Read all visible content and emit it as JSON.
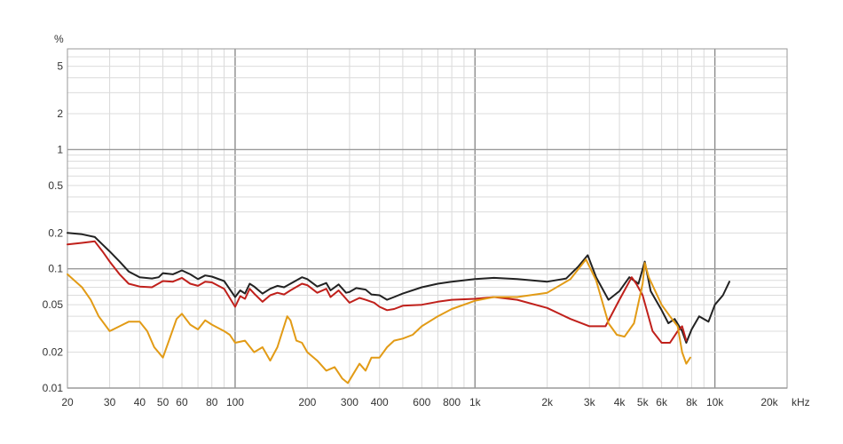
{
  "chart_data": {
    "type": "line",
    "xscale": "log",
    "yscale": "log",
    "xlim": [
      20,
      20000
    ],
    "ylim": [
      0.01,
      7
    ],
    "y_unit_label": "%",
    "x_unit_label": "kHz",
    "x_ticks": [
      {
        "value": 20,
        "label": "20"
      },
      {
        "value": 30,
        "label": "30"
      },
      {
        "value": 40,
        "label": "40"
      },
      {
        "value": 50,
        "label": "50"
      },
      {
        "value": 60,
        "label": "60"
      },
      {
        "value": 80,
        "label": "80"
      },
      {
        "value": 100,
        "label": "100"
      },
      {
        "value": 200,
        "label": "200"
      },
      {
        "value": 300,
        "label": "300"
      },
      {
        "value": 400,
        "label": "400"
      },
      {
        "value": 600,
        "label": "600"
      },
      {
        "value": 800,
        "label": "800"
      },
      {
        "value": 1000,
        "label": "1k"
      },
      {
        "value": 2000,
        "label": "2k"
      },
      {
        "value": 3000,
        "label": "3k"
      },
      {
        "value": 4000,
        "label": "4k"
      },
      {
        "value": 5000,
        "label": "5k"
      },
      {
        "value": 6000,
        "label": "6k"
      },
      {
        "value": 8000,
        "label": "8k"
      },
      {
        "value": 10000,
        "label": "10k"
      },
      {
        "value": 20000,
        "label": "20k"
      }
    ],
    "y_ticks": [
      {
        "value": 5,
        "label": "5"
      },
      {
        "value": 2,
        "label": "2"
      },
      {
        "value": 1,
        "label": "1"
      },
      {
        "value": 0.5,
        "label": "0.5"
      },
      {
        "value": 0.2,
        "label": "0.2"
      },
      {
        "value": 0.1,
        "label": "0.1"
      },
      {
        "value": 0.05,
        "label": "0.05"
      },
      {
        "value": 0.02,
        "label": "0.02"
      },
      {
        "value": 0.01,
        "label": "0.01"
      }
    ],
    "grid": true,
    "series": [
      {
        "color": "#222222",
        "points": [
          [
            20,
            0.2
          ],
          [
            23,
            0.195
          ],
          [
            26,
            0.185
          ],
          [
            28,
            0.16
          ],
          [
            30,
            0.14
          ],
          [
            33,
            0.115
          ],
          [
            36,
            0.095
          ],
          [
            40,
            0.085
          ],
          [
            45,
            0.083
          ],
          [
            48,
            0.085
          ],
          [
            50,
            0.092
          ],
          [
            55,
            0.09
          ],
          [
            60,
            0.097
          ],
          [
            65,
            0.09
          ],
          [
            70,
            0.082
          ],
          [
            75,
            0.088
          ],
          [
            80,
            0.086
          ],
          [
            90,
            0.079
          ],
          [
            100,
            0.058
          ],
          [
            105,
            0.066
          ],
          [
            110,
            0.062
          ],
          [
            115,
            0.075
          ],
          [
            120,
            0.071
          ],
          [
            130,
            0.062
          ],
          [
            140,
            0.068
          ],
          [
            150,
            0.072
          ],
          [
            160,
            0.07
          ],
          [
            170,
            0.075
          ],
          [
            190,
            0.085
          ],
          [
            200,
            0.082
          ],
          [
            220,
            0.071
          ],
          [
            240,
            0.076
          ],
          [
            250,
            0.066
          ],
          [
            270,
            0.074
          ],
          [
            290,
            0.063
          ],
          [
            300,
            0.064
          ],
          [
            320,
            0.069
          ],
          [
            350,
            0.067
          ],
          [
            370,
            0.061
          ],
          [
            400,
            0.06
          ],
          [
            430,
            0.055
          ],
          [
            460,
            0.058
          ],
          [
            500,
            0.062
          ],
          [
            600,
            0.07
          ],
          [
            700,
            0.075
          ],
          [
            800,
            0.078
          ],
          [
            1000,
            0.082
          ],
          [
            1200,
            0.084
          ],
          [
            1500,
            0.082
          ],
          [
            2000,
            0.078
          ],
          [
            2400,
            0.083
          ],
          [
            2700,
            0.105
          ],
          [
            2950,
            0.13
          ],
          [
            3200,
            0.085
          ],
          [
            3600,
            0.055
          ],
          [
            4000,
            0.065
          ],
          [
            4400,
            0.085
          ],
          [
            4800,
            0.075
          ],
          [
            5100,
            0.115
          ],
          [
            5400,
            0.065
          ],
          [
            6000,
            0.045
          ],
          [
            6400,
            0.035
          ],
          [
            6800,
            0.038
          ],
          [
            7300,
            0.03
          ],
          [
            7600,
            0.024
          ],
          [
            8000,
            0.031
          ],
          [
            8600,
            0.04
          ],
          [
            9400,
            0.036
          ],
          [
            10000,
            0.05
          ],
          [
            10800,
            0.06
          ],
          [
            11500,
            0.078
          ]
        ]
      },
      {
        "color": "#c0201b",
        "points": [
          [
            20,
            0.16
          ],
          [
            23,
            0.165
          ],
          [
            26,
            0.17
          ],
          [
            28,
            0.14
          ],
          [
            30,
            0.115
          ],
          [
            33,
            0.09
          ],
          [
            36,
            0.075
          ],
          [
            40,
            0.071
          ],
          [
            45,
            0.07
          ],
          [
            50,
            0.079
          ],
          [
            55,
            0.078
          ],
          [
            60,
            0.084
          ],
          [
            65,
            0.075
          ],
          [
            70,
            0.072
          ],
          [
            75,
            0.078
          ],
          [
            80,
            0.077
          ],
          [
            90,
            0.068
          ],
          [
            100,
            0.048
          ],
          [
            105,
            0.059
          ],
          [
            110,
            0.056
          ],
          [
            115,
            0.068
          ],
          [
            120,
            0.062
          ],
          [
            130,
            0.053
          ],
          [
            140,
            0.06
          ],
          [
            150,
            0.063
          ],
          [
            160,
            0.061
          ],
          [
            170,
            0.066
          ],
          [
            190,
            0.075
          ],
          [
            200,
            0.073
          ],
          [
            220,
            0.063
          ],
          [
            240,
            0.068
          ],
          [
            250,
            0.058
          ],
          [
            270,
            0.066
          ],
          [
            290,
            0.056
          ],
          [
            300,
            0.052
          ],
          [
            330,
            0.057
          ],
          [
            350,
            0.055
          ],
          [
            380,
            0.052
          ],
          [
            400,
            0.048
          ],
          [
            430,
            0.045
          ],
          [
            460,
            0.046
          ],
          [
            500,
            0.049
          ],
          [
            600,
            0.05
          ],
          [
            700,
            0.053
          ],
          [
            800,
            0.055
          ],
          [
            1000,
            0.056
          ],
          [
            1200,
            0.058
          ],
          [
            1500,
            0.055
          ],
          [
            2000,
            0.047
          ],
          [
            2500,
            0.038
          ],
          [
            3000,
            0.033
          ],
          [
            3500,
            0.033
          ],
          [
            4000,
            0.055
          ],
          [
            4500,
            0.085
          ],
          [
            4700,
            0.075
          ],
          [
            5000,
            0.06
          ],
          [
            5500,
            0.03
          ],
          [
            6000,
            0.024
          ],
          [
            6500,
            0.024
          ],
          [
            7000,
            0.03
          ],
          [
            7300,
            0.033
          ],
          [
            7600,
            0.025
          ]
        ]
      },
      {
        "color": "#e29b16",
        "points": [
          [
            20,
            0.09
          ],
          [
            23,
            0.07
          ],
          [
            25,
            0.055
          ],
          [
            27,
            0.04
          ],
          [
            30,
            0.03
          ],
          [
            33,
            0.033
          ],
          [
            36,
            0.036
          ],
          [
            40,
            0.036
          ],
          [
            43,
            0.03
          ],
          [
            46,
            0.022
          ],
          [
            50,
            0.018
          ],
          [
            53,
            0.025
          ],
          [
            57,
            0.038
          ],
          [
            60,
            0.042
          ],
          [
            65,
            0.034
          ],
          [
            70,
            0.031
          ],
          [
            75,
            0.037
          ],
          [
            80,
            0.034
          ],
          [
            90,
            0.03
          ],
          [
            95,
            0.028
          ],
          [
            100,
            0.024
          ],
          [
            110,
            0.025
          ],
          [
            120,
            0.02
          ],
          [
            130,
            0.022
          ],
          [
            140,
            0.017
          ],
          [
            150,
            0.022
          ],
          [
            160,
            0.033
          ],
          [
            165,
            0.04
          ],
          [
            170,
            0.037
          ],
          [
            180,
            0.025
          ],
          [
            190,
            0.024
          ],
          [
            200,
            0.02
          ],
          [
            220,
            0.017
          ],
          [
            240,
            0.014
          ],
          [
            260,
            0.015
          ],
          [
            280,
            0.012
          ],
          [
            295,
            0.011
          ],
          [
            310,
            0.013
          ],
          [
            330,
            0.016
          ],
          [
            350,
            0.014
          ],
          [
            370,
            0.018
          ],
          [
            400,
            0.018
          ],
          [
            430,
            0.022
          ],
          [
            460,
            0.025
          ],
          [
            500,
            0.026
          ],
          [
            550,
            0.028
          ],
          [
            600,
            0.033
          ],
          [
            700,
            0.04
          ],
          [
            800,
            0.046
          ],
          [
            1000,
            0.054
          ],
          [
            1200,
            0.058
          ],
          [
            1500,
            0.058
          ],
          [
            2000,
            0.063
          ],
          [
            2500,
            0.082
          ],
          [
            2900,
            0.12
          ],
          [
            3200,
            0.08
          ],
          [
            3600,
            0.035
          ],
          [
            3900,
            0.028
          ],
          [
            4200,
            0.027
          ],
          [
            4600,
            0.035
          ],
          [
            5000,
            0.075
          ],
          [
            5100,
            0.112
          ],
          [
            5300,
            0.085
          ],
          [
            6000,
            0.05
          ],
          [
            6500,
            0.04
          ],
          [
            7000,
            0.033
          ],
          [
            7300,
            0.02
          ],
          [
            7600,
            0.016
          ],
          [
            7900,
            0.018
          ]
        ]
      }
    ]
  }
}
